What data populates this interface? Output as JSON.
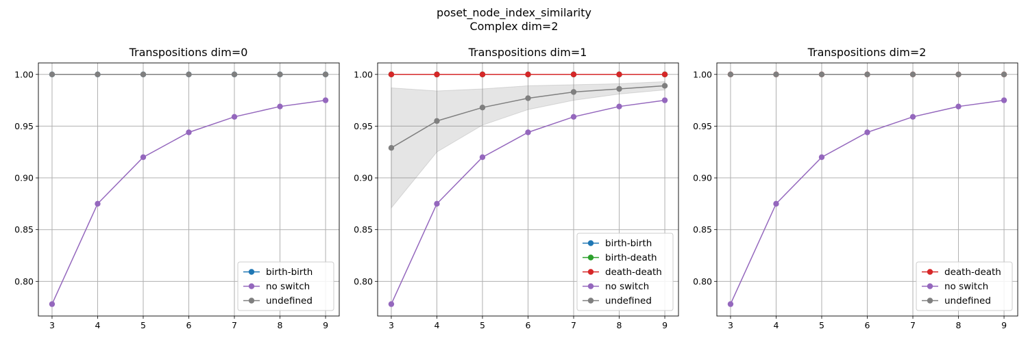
{
  "figure": {
    "suptitle_line1": "poset_node_index_similarity",
    "suptitle_line2": "Complex dim=2"
  },
  "colors": {
    "birth-birth": "#1f77b4",
    "birth-death": "#2ca02c",
    "death-death": "#d62728",
    "no switch": "#9467bd",
    "undefined": "#7f7f7f"
  },
  "chart_data": [
    {
      "type": "line",
      "title": "Transpositions dim=0",
      "x": [
        3,
        4,
        5,
        6,
        7,
        8,
        9
      ],
      "xlabel": "",
      "ylabel": "",
      "ylim": [
        0.7665,
        1.0111
      ],
      "yticks": [
        "0.80",
        "0.85",
        "0.90",
        "0.95",
        "1.00"
      ],
      "grid": true,
      "legend_position": "lower right",
      "series": [
        {
          "name": "birth-birth",
          "values": [
            1.0,
            1.0,
            1.0,
            1.0,
            1.0,
            1.0,
            1.0
          ]
        },
        {
          "name": "no switch",
          "values": [
            0.778,
            0.875,
            0.92,
            0.944,
            0.959,
            0.969,
            0.975
          ]
        },
        {
          "name": "undefined",
          "values": [
            1.0,
            1.0,
            1.0,
            1.0,
            1.0,
            1.0,
            1.0
          ]
        }
      ]
    },
    {
      "type": "line",
      "title": "Transpositions dim=1",
      "x": [
        3,
        4,
        5,
        6,
        7,
        8,
        9
      ],
      "xlabel": "",
      "ylabel": "",
      "ylim": [
        0.7665,
        1.0111
      ],
      "yticks": [
        "0.80",
        "0.85",
        "0.90",
        "0.95",
        "1.00"
      ],
      "grid": true,
      "legend_position": "lower right",
      "series": [
        {
          "name": "birth-birth",
          "values": [
            1.0,
            1.0,
            1.0,
            1.0,
            1.0,
            1.0,
            1.0
          ]
        },
        {
          "name": "birth-death",
          "values": [
            1.0,
            1.0,
            1.0,
            1.0,
            1.0,
            1.0,
            1.0
          ]
        },
        {
          "name": "death-death",
          "values": [
            1.0,
            1.0,
            1.0,
            1.0,
            1.0,
            1.0,
            1.0
          ]
        },
        {
          "name": "no switch",
          "values": [
            0.778,
            0.875,
            0.92,
            0.944,
            0.959,
            0.969,
            0.975
          ]
        },
        {
          "name": "undefined",
          "values": [
            0.929,
            0.955,
            0.968,
            0.977,
            0.983,
            0.986,
            0.989
          ],
          "band_lower": [
            0.871,
            0.925,
            0.951,
            0.966,
            0.975,
            0.981,
            0.985
          ],
          "band_upper": [
            0.987,
            0.984,
            0.986,
            0.989,
            0.99,
            0.991,
            0.993
          ]
        }
      ]
    },
    {
      "type": "line",
      "title": "Transpositions dim=2",
      "x": [
        3,
        4,
        5,
        6,
        7,
        8,
        9
      ],
      "xlabel": "",
      "ylabel": "",
      "ylim": [
        0.7665,
        1.0111
      ],
      "yticks": [
        "0.80",
        "0.85",
        "0.90",
        "0.95",
        "1.00"
      ],
      "grid": true,
      "legend_position": "lower right",
      "series": [
        {
          "name": "death-death",
          "values": [
            1.0,
            1.0,
            1.0,
            1.0,
            1.0,
            1.0,
            1.0
          ]
        },
        {
          "name": "no switch",
          "values": [
            0.778,
            0.875,
            0.92,
            0.944,
            0.959,
            0.969,
            0.975
          ]
        },
        {
          "name": "undefined",
          "values": [
            1.0,
            1.0,
            1.0,
            1.0,
            1.0,
            1.0,
            1.0
          ]
        }
      ]
    }
  ]
}
